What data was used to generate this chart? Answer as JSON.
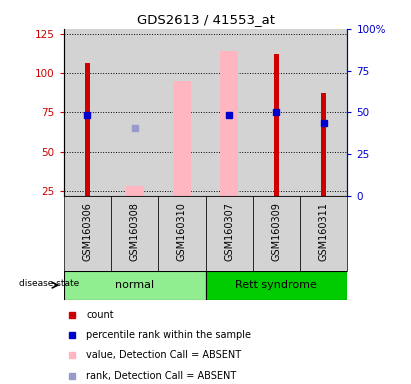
{
  "title": "GDS2613 / 41553_at",
  "samples": [
    "GSM160306",
    "GSM160308",
    "GSM160310",
    "GSM160307",
    "GSM160309",
    "GSM160311"
  ],
  "groups": [
    "normal",
    "normal",
    "normal",
    "Rett syndrome",
    "Rett syndrome",
    "Rett syndrome"
  ],
  "ylim_left": [
    22,
    128
  ],
  "ylim_right": [
    0,
    100
  ],
  "yticks_left": [
    25,
    50,
    75,
    100,
    125
  ],
  "yticks_right": [
    0,
    25,
    50,
    75,
    100
  ],
  "left_tick_labels": [
    "25",
    "50",
    "75",
    "100",
    "125"
  ],
  "right_tick_labels": [
    "0",
    "25",
    "50",
    "75",
    "100%"
  ],
  "red_bars": [
    106,
    null,
    null,
    null,
    112,
    87
  ],
  "blue_squares": [
    73,
    null,
    null,
    73,
    75,
    68
  ],
  "pink_bars": [
    null,
    28,
    95,
    114,
    null,
    null
  ],
  "lavender_squares": [
    null,
    65,
    null,
    null,
    null,
    null
  ],
  "red_color": "#CC0000",
  "blue_color": "#0000CC",
  "pink_color": "#FFB6C1",
  "lavender_color": "#9999CC",
  "background_gray": "#D3D3D3",
  "normal_color": "#90EE90",
  "rett_color": "#00CC00",
  "legend_items": [
    {
      "color": "#CC0000",
      "label": "count"
    },
    {
      "color": "#0000CC",
      "label": "percentile rank within the sample"
    },
    {
      "color": "#FFB6C1",
      "label": "value, Detection Call = ABSENT"
    },
    {
      "color": "#9999CC",
      "label": "rank, Detection Call = ABSENT"
    }
  ]
}
